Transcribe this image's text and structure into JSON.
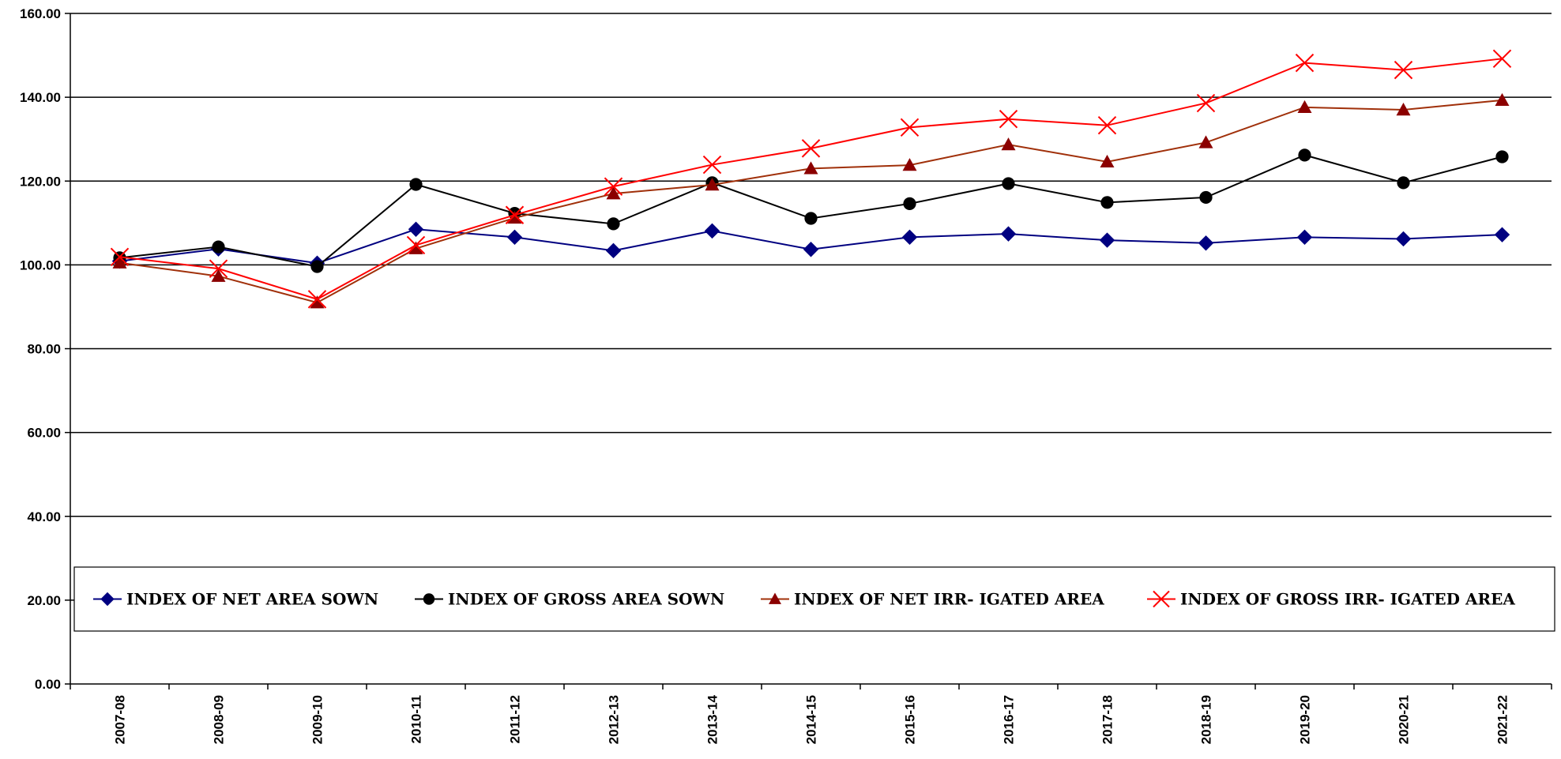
{
  "chart_data": {
    "type": "line",
    "title": "",
    "xlabel": "",
    "ylabel": "",
    "ylim": [
      0,
      160
    ],
    "y_ticks": [
      "0.00",
      "20.00",
      "40.00",
      "60.00",
      "80.00",
      "100.00",
      "120.00",
      "140.00",
      "160.00"
    ],
    "grid": "horizontal",
    "legend_position": "bottom",
    "categories": [
      "2007-08",
      "2008-09",
      "2009-10",
      "2010-11",
      "2011-12",
      "2012-13",
      "2013-14",
      "2014-15",
      "2015-16",
      "2016-17",
      "2017-18",
      "2018-19",
      "2019-20",
      "2020-21",
      "2021-22"
    ],
    "series": [
      {
        "name": "INDEX OF NET AREA SOWN",
        "color": "#000080",
        "marker": "diamond",
        "values": [
          100.9,
          103.8,
          100.4,
          108.5,
          106.6,
          103.4,
          108.1,
          103.7,
          106.6,
          107.4,
          105.9,
          105.2,
          106.6,
          106.2,
          107.2
        ]
      },
      {
        "name": "INDEX OF GROSS AREA SOWN",
        "color": "#000000",
        "marker": "circle",
        "values": [
          101.7,
          104.3,
          99.6,
          119.2,
          112.3,
          109.8,
          119.6,
          111.1,
          114.6,
          119.4,
          114.9,
          116.1,
          126.2,
          119.6,
          125.8
        ]
      },
      {
        "name": "INDEX OF NET IRR- IGATED AREA",
        "color": "#8B0000",
        "line_color": "#A0300A",
        "marker": "triangle",
        "values": [
          100.5,
          97.3,
          91.0,
          103.9,
          111.2,
          117.0,
          119.1,
          123.0,
          123.8,
          128.7,
          124.6,
          129.2,
          137.6,
          137.0,
          139.3
        ]
      },
      {
        "name": "INDEX OF GROSS IRR- IGATED AREA",
        "color": "#FF0000",
        "marker": "x",
        "values": [
          101.9,
          99.1,
          91.8,
          104.7,
          111.9,
          118.7,
          123.9,
          127.8,
          132.8,
          134.8,
          133.3,
          138.6,
          148.2,
          146.5,
          149.2
        ]
      }
    ]
  }
}
